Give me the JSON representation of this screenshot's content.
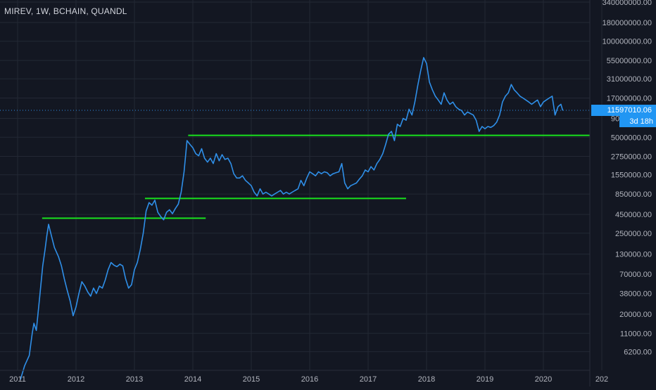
{
  "header": {
    "symbol_title": "MIREV, 1W, BCHAIN, QUANDL"
  },
  "last_price": {
    "value": "11597010.06",
    "countdown": "3d 18h"
  },
  "colors": {
    "background": "#131722",
    "grid": "#232834",
    "series": "#2f8fe8",
    "support": "#19e21d",
    "axis_text": "#b2b5be",
    "badge": "#2196f3"
  },
  "chart_data": {
    "type": "line",
    "scale": "log",
    "title": "",
    "xlabel": "",
    "ylabel": "",
    "grid": true,
    "x_ticks": [
      "2011",
      "2012",
      "2013",
      "2014",
      "2015",
      "2016",
      "2017",
      "2018",
      "2019",
      "2020",
      "202"
    ],
    "y_ticks": [
      "340000000.00",
      "180000000.00",
      "100000000.00",
      "55000000.00",
      "31000000.00",
      "17000000.00",
      "9000000.00",
      "5000000.00",
      "2750000.00",
      "1550000.00",
      "850000.00",
      "450000.00",
      "250000.00",
      "130000.00",
      "70000.00",
      "38000.00",
      "20000.00",
      "11000.00",
      "6200.00"
    ],
    "ylim": [
      2000,
      340000000
    ],
    "series": [
      {
        "points": [
          [
            2011.05,
            2600
          ],
          [
            2011.12,
            4000
          ],
          [
            2011.2,
            5500
          ],
          [
            2011.25,
            11000
          ],
          [
            2011.28,
            15000
          ],
          [
            2011.32,
            12000
          ],
          [
            2011.38,
            35000
          ],
          [
            2011.43,
            90000
          ],
          [
            2011.47,
            150000
          ],
          [
            2011.5,
            230000
          ],
          [
            2011.53,
            330000
          ],
          [
            2011.58,
            230000
          ],
          [
            2011.63,
            160000
          ],
          [
            2011.7,
            120000
          ],
          [
            2011.75,
            90000
          ],
          [
            2011.8,
            60000
          ],
          [
            2011.85,
            42000
          ],
          [
            2011.9,
            30000
          ],
          [
            2011.95,
            19000
          ],
          [
            2012.0,
            25000
          ],
          [
            2012.05,
            38000
          ],
          [
            2012.1,
            55000
          ],
          [
            2012.15,
            48000
          ],
          [
            2012.2,
            40000
          ],
          [
            2012.25,
            35000
          ],
          [
            2012.3,
            45000
          ],
          [
            2012.35,
            38000
          ],
          [
            2012.4,
            48000
          ],
          [
            2012.45,
            45000
          ],
          [
            2012.5,
            58000
          ],
          [
            2012.55,
            80000
          ],
          [
            2012.6,
            100000
          ],
          [
            2012.65,
            92000
          ],
          [
            2012.7,
            88000
          ],
          [
            2012.75,
            95000
          ],
          [
            2012.8,
            90000
          ],
          [
            2012.85,
            60000
          ],
          [
            2012.9,
            45000
          ],
          [
            2012.95,
            50000
          ],
          [
            2013.0,
            80000
          ],
          [
            2013.05,
            100000
          ],
          [
            2013.1,
            150000
          ],
          [
            2013.15,
            250000
          ],
          [
            2013.2,
            500000
          ],
          [
            2013.25,
            650000
          ],
          [
            2013.3,
            600000
          ],
          [
            2013.35,
            700000
          ],
          [
            2013.4,
            480000
          ],
          [
            2013.45,
            420000
          ],
          [
            2013.5,
            380000
          ],
          [
            2013.55,
            480000
          ],
          [
            2013.6,
            520000
          ],
          [
            2013.65,
            460000
          ],
          [
            2013.7,
            540000
          ],
          [
            2013.75,
            620000
          ],
          [
            2013.8,
            900000
          ],
          [
            2013.85,
            1700000
          ],
          [
            2013.9,
            4500000
          ],
          [
            2013.95,
            4000000
          ],
          [
            2014.0,
            3600000
          ],
          [
            2014.05,
            3000000
          ],
          [
            2014.1,
            2800000
          ],
          [
            2014.15,
            3500000
          ],
          [
            2014.2,
            2600000
          ],
          [
            2014.25,
            2300000
          ],
          [
            2014.3,
            2600000
          ],
          [
            2014.35,
            2200000
          ],
          [
            2014.4,
            3000000
          ],
          [
            2014.45,
            2400000
          ],
          [
            2014.5,
            2900000
          ],
          [
            2014.55,
            2500000
          ],
          [
            2014.6,
            2600000
          ],
          [
            2014.65,
            2200000
          ],
          [
            2014.7,
            1600000
          ],
          [
            2014.75,
            1400000
          ],
          [
            2014.8,
            1400000
          ],
          [
            2014.85,
            1500000
          ],
          [
            2014.9,
            1300000
          ],
          [
            2014.95,
            1200000
          ],
          [
            2015.0,
            1100000
          ],
          [
            2015.05,
            900000
          ],
          [
            2015.1,
            800000
          ],
          [
            2015.15,
            1000000
          ],
          [
            2015.2,
            850000
          ],
          [
            2015.25,
            900000
          ],
          [
            2015.3,
            850000
          ],
          [
            2015.35,
            800000
          ],
          [
            2015.4,
            850000
          ],
          [
            2015.45,
            900000
          ],
          [
            2015.5,
            950000
          ],
          [
            2015.55,
            850000
          ],
          [
            2015.6,
            900000
          ],
          [
            2015.65,
            850000
          ],
          [
            2015.7,
            900000
          ],
          [
            2015.75,
            950000
          ],
          [
            2015.8,
            1000000
          ],
          [
            2015.85,
            1300000
          ],
          [
            2015.9,
            1100000
          ],
          [
            2015.95,
            1400000
          ],
          [
            2016.0,
            1700000
          ],
          [
            2016.05,
            1600000
          ],
          [
            2016.1,
            1500000
          ],
          [
            2016.15,
            1700000
          ],
          [
            2016.2,
            1600000
          ],
          [
            2016.25,
            1700000
          ],
          [
            2016.3,
            1650000
          ],
          [
            2016.35,
            1500000
          ],
          [
            2016.4,
            1600000
          ],
          [
            2016.45,
            1650000
          ],
          [
            2016.5,
            1700000
          ],
          [
            2016.55,
            2200000
          ],
          [
            2016.6,
            1200000
          ],
          [
            2016.65,
            1000000
          ],
          [
            2016.7,
            1100000
          ],
          [
            2016.75,
            1150000
          ],
          [
            2016.8,
            1200000
          ],
          [
            2016.85,
            1350000
          ],
          [
            2016.9,
            1500000
          ],
          [
            2016.95,
            1800000
          ],
          [
            2017.0,
            1700000
          ],
          [
            2017.05,
            2000000
          ],
          [
            2017.1,
            1800000
          ],
          [
            2017.15,
            2200000
          ],
          [
            2017.2,
            2500000
          ],
          [
            2017.25,
            3000000
          ],
          [
            2017.3,
            4000000
          ],
          [
            2017.35,
            5500000
          ],
          [
            2017.4,
            6000000
          ],
          [
            2017.45,
            4500000
          ],
          [
            2017.5,
            7500000
          ],
          [
            2017.55,
            7000000
          ],
          [
            2017.6,
            9000000
          ],
          [
            2017.65,
            8500000
          ],
          [
            2017.7,
            12000000
          ],
          [
            2017.75,
            10000000
          ],
          [
            2017.8,
            15000000
          ],
          [
            2017.85,
            25000000
          ],
          [
            2017.9,
            40000000
          ],
          [
            2017.95,
            60000000
          ],
          [
            2018.0,
            50000000
          ],
          [
            2018.05,
            28000000
          ],
          [
            2018.1,
            22000000
          ],
          [
            2018.15,
            18000000
          ],
          [
            2018.2,
            16000000
          ],
          [
            2018.25,
            14000000
          ],
          [
            2018.3,
            20000000
          ],
          [
            2018.35,
            16000000
          ],
          [
            2018.4,
            14000000
          ],
          [
            2018.45,
            15000000
          ],
          [
            2018.5,
            13000000
          ],
          [
            2018.55,
            12000000
          ],
          [
            2018.6,
            11500000
          ],
          [
            2018.65,
            10000000
          ],
          [
            2018.7,
            11000000
          ],
          [
            2018.75,
            10500000
          ],
          [
            2018.8,
            10000000
          ],
          [
            2018.85,
            8500000
          ],
          [
            2018.9,
            6000000
          ],
          [
            2018.95,
            7000000
          ],
          [
            2019.0,
            6500000
          ],
          [
            2019.05,
            7000000
          ],
          [
            2019.1,
            6800000
          ],
          [
            2019.15,
            7200000
          ],
          [
            2019.2,
            8000000
          ],
          [
            2019.25,
            10000000
          ],
          [
            2019.3,
            15000000
          ],
          [
            2019.35,
            18000000
          ],
          [
            2019.4,
            20000000
          ],
          [
            2019.45,
            26000000
          ],
          [
            2019.5,
            22000000
          ],
          [
            2019.55,
            20000000
          ],
          [
            2019.6,
            18000000
          ],
          [
            2019.65,
            17000000
          ],
          [
            2019.7,
            16000000
          ],
          [
            2019.75,
            15000000
          ],
          [
            2019.8,
            14000000
          ],
          [
            2019.85,
            15000000
          ],
          [
            2019.9,
            16000000
          ],
          [
            2019.95,
            13000000
          ],
          [
            2020.0,
            15000000
          ],
          [
            2020.05,
            16000000
          ],
          [
            2020.1,
            17000000
          ],
          [
            2020.15,
            18000000
          ],
          [
            2020.2,
            10000000
          ],
          [
            2020.25,
            13000000
          ],
          [
            2020.3,
            14000000
          ],
          [
            2020.33,
            11600000
          ]
        ]
      }
    ],
    "support_lines": [
      {
        "from": 2011.42,
        "to": 2014.22,
        "level": 400000
      },
      {
        "from": 2013.18,
        "to": 2017.65,
        "level": 740000
      },
      {
        "from": 2013.92,
        "to": 2020.8,
        "level": 5300000
      }
    ],
    "last_value": 11597010.06
  }
}
